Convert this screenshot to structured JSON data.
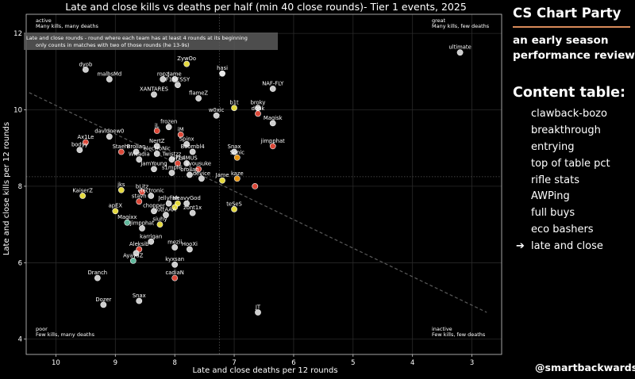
{
  "chart_data": {
    "type": "scatter",
    "title": "Late and close kills vs deaths per half (min 40 close rounds)- Tier 1 events, 2025",
    "xlabel": "Late and close deaths per 12 rounds",
    "ylabel": "Late and close kills per 12 rounds",
    "xlim": [
      10.5,
      2.5
    ],
    "ylim": [
      3.6,
      12.5
    ],
    "x_reversed": true,
    "xticks": [
      10,
      9,
      8,
      7,
      6,
      5,
      4,
      3
    ],
    "yticks": [
      4,
      6,
      8,
      10,
      12
    ],
    "xtick_labels": [
      "10",
      "9",
      "8",
      "7",
      "6",
      "5",
      "4",
      "3"
    ],
    "ytick_labels": [
      "4",
      "6",
      "8",
      "10",
      "12"
    ],
    "grid": true,
    "reference_lines": {
      "x_mean": 7.25,
      "y_mean": 8.25
    },
    "trendline": {
      "x1": 10.45,
      "y1": 10.45,
      "x2": 2.75,
      "y2": 4.7
    },
    "annotation_box": {
      "lines": [
        "Late and close rounds - round where each team has at least 4 rounds at its beginning",
        "only counts in matches with two of those rounds (he 13-9s)"
      ]
    },
    "quadrant_labels": [
      {
        "pos": "top-left",
        "title": "active",
        "text": "Many kills, many deaths"
      },
      {
        "pos": "top-right",
        "title": "great",
        "text": "Many kills, few deaths"
      },
      {
        "pos": "bottom-left",
        "title": "poor",
        "text": "Few kills, many deaths"
      },
      {
        "pos": "bottom-right",
        "title": "inactive",
        "text": "Few kills, few deaths"
      }
    ],
    "points": [
      {
        "name": "ultimate",
        "x": 3.2,
        "y": 11.5,
        "color": "#d9d9d9"
      },
      {
        "name": "Zywoo",
        "x": 7.8,
        "y": 11.2,
        "color": "#f0e442"
      },
      {
        "name": "hasi",
        "x": 7.2,
        "y": 10.95,
        "color": "#f5f5f5"
      },
      {
        "name": "ropz",
        "x": 8.2,
        "y": 10.8,
        "color": "#d9d9d9"
      },
      {
        "name": "HeavyGod",
        "x": 8.0,
        "y": 10.8,
        "color": "#d9d9d9"
      },
      {
        "name": "F1NESSY",
        "x": 7.95,
        "y": 10.65,
        "color": "#d9d9d9"
      },
      {
        "name": "nafany",
        "x": 6.35,
        "y": 10.55,
        "color": "#d9d9d9"
      },
      {
        "name": "dyob",
        "x": 9.5,
        "y": 11.05,
        "color": "#d9d9d9"
      },
      {
        "name": "malbsMd",
        "x": 9.1,
        "y": 10.8,
        "color": "#d9d9d9"
      },
      {
        "name": "XANTARES",
        "x": 8.35,
        "y": 10.4,
        "color": "#d9d9d9"
      },
      {
        "name": "flameZ",
        "x": 7.6,
        "y": 10.3,
        "color": "#d9d9d9"
      },
      {
        "name": "b1t",
        "x": 7.0,
        "y": 10.05,
        "color": "#f0e442"
      },
      {
        "name": "broky",
        "x": 6.6,
        "y": 10.05,
        "color": "#d9d9d9"
      },
      {
        "name": "donk",
        "x": 6.6,
        "y": 9.9,
        "color": "#e74c3c"
      },
      {
        "name": "w0xic",
        "x": 7.3,
        "y": 9.85,
        "color": "#d9d9d9"
      },
      {
        "name": "Magisk",
        "x": 6.35,
        "y": 9.65,
        "color": "#d9d9d9"
      },
      {
        "name": "frozen",
        "x": 8.1,
        "y": 9.55,
        "color": "#d9d9d9"
      },
      {
        "name": "jL",
        "x": 8.3,
        "y": 9.45,
        "color": "#e74c3c"
      },
      {
        "name": "iM",
        "x": 7.9,
        "y": 9.35,
        "color": "#e74c3c"
      },
      {
        "name": "davidakovic",
        "x": 9.1,
        "y": 9.3,
        "color": "#d9d9d9"
      },
      {
        "name": "Ax1Le",
        "x": 9.5,
        "y": 9.15,
        "color": "#e74c3c"
      },
      {
        "name": "Spinx",
        "x": 7.8,
        "y": 9.1,
        "color": "#d9d9d9"
      },
      {
        "name": "NertZ",
        "x": 8.3,
        "y": 9.05,
        "color": "#d9d9d9"
      },
      {
        "name": "jimpphat",
        "x": 6.35,
        "y": 9.05,
        "color": "#e74c3c"
      },
      {
        "name": "bodyy",
        "x": 9.6,
        "y": 8.95,
        "color": "#d9d9d9"
      },
      {
        "name": "Staehr",
        "x": 8.9,
        "y": 8.9,
        "color": "#e74c3c"
      },
      {
        "name": "Brollan",
        "x": 8.65,
        "y": 8.9,
        "color": "#d9d9d9"
      },
      {
        "name": "electroNic",
        "x": 8.3,
        "y": 8.85,
        "color": "#d9d9d9"
      },
      {
        "name": "Boombl4",
        "x": 7.7,
        "y": 8.9,
        "color": "#d9d9d9"
      },
      {
        "name": "Snax",
        "x": 7.0,
        "y": 8.9,
        "color": "#d9d9d9"
      },
      {
        "name": "Sonic",
        "x": 6.95,
        "y": 8.75,
        "color": "#f39c12"
      },
      {
        "name": "Wicadia",
        "x": 8.6,
        "y": 8.7,
        "color": "#d9d9d9"
      },
      {
        "name": "Twistzz",
        "x": 8.05,
        "y": 8.7,
        "color": "#d9d9d9"
      },
      {
        "name": "FL4MUS",
        "x": 7.8,
        "y": 8.6,
        "color": "#d9d9d9"
      },
      {
        "name": "torzsi",
        "x": 7.95,
        "y": 8.6,
        "color": "#e74c3c"
      },
      {
        "name": "kyousuke",
        "x": 7.6,
        "y": 8.45,
        "color": "#e74c3c"
      },
      {
        "name": "JamYoung",
        "x": 8.35,
        "y": 8.45,
        "color": "#d9d9d9"
      },
      {
        "name": "s1mple",
        "x": 8.05,
        "y": 8.35,
        "color": "#d9d9d9"
      },
      {
        "name": "brollan2",
        "x": 7.75,
        "y": 8.3,
        "color": "#d9d9d9"
      },
      {
        "name": "device",
        "x": 7.55,
        "y": 8.2,
        "color": "#d9d9d9"
      },
      {
        "name": "Jame",
        "x": 7.2,
        "y": 8.15,
        "color": "#f0e442"
      },
      {
        "name": "kaze",
        "x": 6.95,
        "y": 8.2,
        "color": "#f39c12"
      },
      {
        "name": "malbs",
        "x": 6.65,
        "y": 8.0,
        "color": "#e74c3c"
      },
      {
        "name": "KaiserZ",
        "x": 9.55,
        "y": 7.75,
        "color": "#f0e442"
      },
      {
        "name": "jks",
        "x": 8.9,
        "y": 7.9,
        "color": "#f0e442"
      },
      {
        "name": "bLitz",
        "x": 8.55,
        "y": 7.85,
        "color": "#e74c3c"
      },
      {
        "name": "electroNic2",
        "x": 8.4,
        "y": 7.75,
        "color": "#d9d9d9"
      },
      {
        "name": "stavn",
        "x": 8.6,
        "y": 7.6,
        "color": "#e74c3c"
      },
      {
        "name": "Jellyfish",
        "x": 8.1,
        "y": 7.55,
        "color": "#d9d9d9"
      },
      {
        "name": "huNter",
        "x": 7.95,
        "y": 7.55,
        "color": "#f0e442"
      },
      {
        "name": "HeavyGod2",
        "x": 7.8,
        "y": 7.55,
        "color": "#d9d9d9"
      },
      {
        "name": "b1tz",
        "x": 8.0,
        "y": 7.45,
        "color": "#f0e442"
      },
      {
        "name": "zont1x",
        "x": 7.7,
        "y": 7.3,
        "color": "#d9d9d9"
      },
      {
        "name": "teSeS",
        "x": 7.0,
        "y": 7.4,
        "color": "#f0e442"
      },
      {
        "name": "chopper",
        "x": 8.35,
        "y": 7.35,
        "color": "#d9d9d9"
      },
      {
        "name": "jottAAA",
        "x": 8.15,
        "y": 7.25,
        "color": "#d9d9d9"
      },
      {
        "name": "apEX",
        "x": 9.0,
        "y": 7.35,
        "color": "#f0e442"
      },
      {
        "name": "Magixx",
        "x": 8.8,
        "y": 7.05,
        "color": "#66c2a5"
      },
      {
        "name": "siuhy",
        "x": 8.25,
        "y": 7.0,
        "color": "#f0e442"
      },
      {
        "name": "Jimpphat",
        "x": 8.55,
        "y": 6.9,
        "color": "#d9d9d9"
      },
      {
        "name": "karrigan",
        "x": 8.4,
        "y": 6.55,
        "color": "#d9d9d9"
      },
      {
        "name": "mezii",
        "x": 8.0,
        "y": 6.4,
        "color": "#d9d9d9"
      },
      {
        "name": "HooXi",
        "x": 7.75,
        "y": 6.35,
        "color": "#d9d9d9"
      },
      {
        "name": "Aleksib",
        "x": 8.6,
        "y": 6.35,
        "color": "#e74c3c"
      },
      {
        "name": "Aleksib2",
        "x": 8.65,
        "y": 6.25,
        "color": "#d9d9d9"
      },
      {
        "name": "AyayaZ",
        "x": 8.7,
        "y": 6.05,
        "color": "#66c2a5"
      },
      {
        "name": "kyxsan",
        "x": 8.0,
        "y": 5.95,
        "color": "#d9d9d9"
      },
      {
        "name": "cadiaN",
        "x": 8.0,
        "y": 5.6,
        "color": "#e74c3c"
      },
      {
        "name": "Dranch",
        "x": 9.3,
        "y": 5.6,
        "color": "#d9d9d9"
      },
      {
        "name": "Dozer",
        "x": 9.2,
        "y": 4.9,
        "color": "#d9d9d9"
      },
      {
        "name": "Snax2",
        "x": 8.6,
        "y": 5.0,
        "color": "#d9d9d9"
      },
      {
        "name": "JT",
        "x": 6.6,
        "y": 4.7,
        "color": "#d9d9d9"
      }
    ],
    "printed_labels": [
      {
        "name": "ultimate",
        "text": "ultimate"
      },
      {
        "name": "Zywoo",
        "text": "ZywOo"
      },
      {
        "name": "hasi",
        "text": "hasi"
      },
      {
        "name": "ropz",
        "text": "ropz"
      },
      {
        "name": "HeavyGod",
        "text": "Jame"
      },
      {
        "name": "F1NESSY",
        "text": "F1NESSY"
      },
      {
        "name": "nafany",
        "text": "NAF-FLY"
      },
      {
        "name": "dyob",
        "text": "dyob"
      },
      {
        "name": "malbsMd",
        "text": "malbsMd"
      },
      {
        "name": "XANTARES",
        "text": "XANTARES"
      },
      {
        "name": "flameZ",
        "text": "flameZ"
      },
      {
        "name": "b1t",
        "text": "b1t"
      },
      {
        "name": "broky",
        "text": "broky"
      },
      {
        "name": "donk",
        "text": "donk"
      },
      {
        "name": "w0xic",
        "text": "w0xic"
      },
      {
        "name": "Magisk",
        "text": "Magisk"
      },
      {
        "name": "frozen",
        "text": "frozen"
      },
      {
        "name": "jL",
        "text": "jL"
      },
      {
        "name": "iM",
        "text": "iM"
      },
      {
        "name": "davidakovic",
        "text": "davidnew0"
      },
      {
        "name": "Ax1Le",
        "text": "Ax1Le"
      },
      {
        "name": "Spinx",
        "text": "Spinx"
      },
      {
        "name": "NertZ",
        "text": "NertZ"
      },
      {
        "name": "jimpphat",
        "text": "jimpphat"
      },
      {
        "name": "bodyy",
        "text": "bodyy"
      },
      {
        "name": "Staehr",
        "text": "Staehr"
      },
      {
        "name": "Brollan",
        "text": "Brollan"
      },
      {
        "name": "electroNic",
        "text": "electroNic"
      },
      {
        "name": "Boombl4",
        "text": "Boombl4"
      },
      {
        "name": "Snax",
        "text": "Snax"
      },
      {
        "name": "Sonic",
        "text": "Sonic"
      },
      {
        "name": "Wicadia",
        "text": "Wicadia"
      },
      {
        "name": "Twistzz",
        "text": "Twistzz"
      },
      {
        "name": "FL4MUS",
        "text": "FL4MUS"
      },
      {
        "name": "torzsi",
        "text": "torzsi"
      },
      {
        "name": "kyousuke",
        "text": "kyousuke"
      },
      {
        "name": "JamYoung",
        "text": "JamYoung"
      },
      {
        "name": "s1mple",
        "text": "s1mple"
      },
      {
        "name": "brollan2",
        "text": "brollan"
      },
      {
        "name": "device",
        "text": "device"
      },
      {
        "name": "Jame",
        "text": "Jame"
      },
      {
        "name": "kaze",
        "text": "kaze"
      },
      {
        "name": "KaiserZ",
        "text": "KaiserZ"
      },
      {
        "name": "jks",
        "text": "jks"
      },
      {
        "name": "bLitz",
        "text": "bLitz"
      },
      {
        "name": "electroNic2",
        "text": "electronic"
      },
      {
        "name": "stavn",
        "text": "stavn"
      },
      {
        "name": "Jellyfish",
        "text": "Jellyfish"
      },
      {
        "name": "HeavyGod2",
        "text": "HeavyGod"
      },
      {
        "name": "zont1x",
        "text": "zont1x"
      },
      {
        "name": "teSeS",
        "text": "teSeS"
      },
      {
        "name": "chopper",
        "text": "chopper"
      },
      {
        "name": "jottAAA",
        "text": "jottAAA"
      },
      {
        "name": "apEX",
        "text": "apEX"
      },
      {
        "name": "Magixx",
        "text": "Magixx"
      },
      {
        "name": "Jimpphat",
        "text": "Jimpphat"
      },
      {
        "name": "siuhy",
        "text": "siuhy"
      },
      {
        "name": "karrigan",
        "text": "karrigan"
      },
      {
        "name": "mezii",
        "text": "mezii"
      },
      {
        "name": "HooXi",
        "text": "HooXi"
      },
      {
        "name": "Aleksib",
        "text": "Aleksib"
      },
      {
        "name": "AyayaZ",
        "text": "AyayaZ"
      },
      {
        "name": "kyxsan",
        "text": "kyxsan"
      },
      {
        "name": "cadiaN",
        "text": "cadiaN"
      },
      {
        "name": "Dranch",
        "text": "Dranch"
      },
      {
        "name": "Dozer",
        "text": "Dozer"
      },
      {
        "name": "Snax2",
        "text": "Snax"
      },
      {
        "name": "JT",
        "text": "JT"
      }
    ]
  },
  "sidebar": {
    "brand": "CS Chart Party",
    "subtitle": "an early season performance review",
    "toc_title": "Content table:",
    "active_index": 8,
    "arrow_symbol": "➔",
    "items": [
      "clawback-bozo",
      "breakthrough",
      "entrying",
      "top of table pct",
      "rifle stats",
      "AWPing",
      "full buys",
      "eco bashers",
      "late and close"
    ],
    "handle": "@smartbackwards"
  },
  "colors": {
    "background": "#000000",
    "accent_rule": "#d98b5a",
    "axis": "#cccccc",
    "grid": "#2a2a2a"
  }
}
